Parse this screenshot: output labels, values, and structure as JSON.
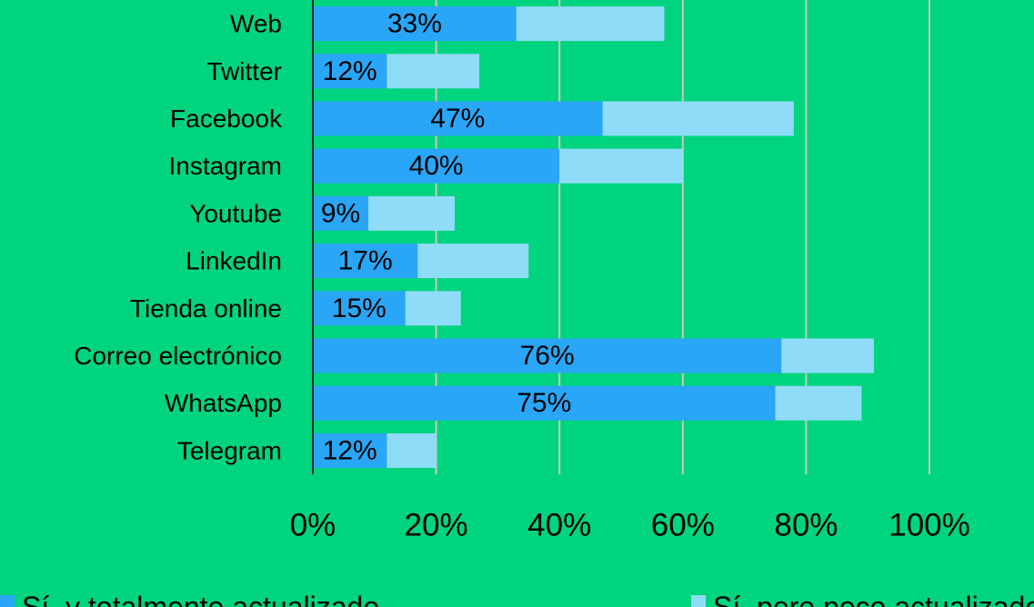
{
  "chart_data": {
    "type": "bar",
    "orientation": "horizontal",
    "stacked": true,
    "categories": [
      "Web",
      "Twitter",
      "Facebook",
      "Instagram",
      "Youtube",
      "LinkedIn",
      "Tienda online",
      "Correo electrónico",
      "WhatsApp",
      "Telegram"
    ],
    "series": [
      {
        "name": "Sí, y totalmente actualizado",
        "color": "#29a6f7",
        "values": [
          33,
          12,
          47,
          40,
          9,
          17,
          15,
          76,
          75,
          12
        ],
        "value_labels": [
          "33%",
          "12%",
          "47%",
          "40%",
          "9%",
          "17%",
          "15%",
          "76%",
          "75%",
          "12%"
        ]
      },
      {
        "name": "Sí, pero poco actualizado",
        "color": "#8fdcf8",
        "values": [
          24,
          15,
          31,
          20,
          14,
          18,
          9,
          15,
          14,
          8
        ]
      }
    ],
    "xlim": [
      0,
      100
    ],
    "xticks": [
      {
        "value": 0,
        "label": "0%"
      },
      {
        "value": 20,
        "label": "20%"
      },
      {
        "value": 40,
        "label": "40%"
      },
      {
        "value": 60,
        "label": "60%"
      },
      {
        "value": 80,
        "label": "80%"
      },
      {
        "value": 100,
        "label": "100%"
      }
    ],
    "grid": true,
    "legend": "bottom"
  }
}
